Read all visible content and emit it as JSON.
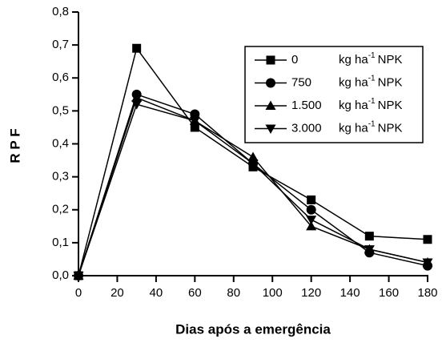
{
  "chart_data": {
    "type": "line",
    "ylabel": "R P F",
    "xlabel": "Dias após a emergência",
    "x": [
      0,
      30,
      60,
      90,
      120,
      150,
      180
    ],
    "series": [
      {
        "name": "0",
        "color": "#000000",
        "marker": "square",
        "values": [
          0,
          0.69,
          0.45,
          0.33,
          0.23,
          0.12,
          0.11
        ]
      },
      {
        "name": "750",
        "color": "#000000",
        "marker": "circle",
        "values": [
          0,
          0.55,
          0.49,
          0.34,
          0.2,
          0.07,
          0.03
        ]
      },
      {
        "name": "1.500",
        "color": "#000000",
        "marker": "triangle-up",
        "values": [
          0,
          0.54,
          0.47,
          0.36,
          0.15,
          0.08,
          0.04
        ]
      },
      {
        "name": "3.000",
        "color": "#000000",
        "marker": "triangle-down",
        "values": [
          0,
          0.52,
          0.47,
          0.34,
          0.17,
          0.08,
          0.04
        ]
      }
    ],
    "legend_unit": {
      "base": "kg ha",
      "sup": "-1",
      "rest": "NPK"
    },
    "legend": "upper right",
    "xlim": [
      0,
      180
    ],
    "xticks": [
      0,
      20,
      40,
      60,
      80,
      100,
      120,
      140,
      160,
      180
    ],
    "ylim": [
      0,
      0.8
    ],
    "yticks": [
      {
        "value": 0,
        "label": "0,0"
      },
      {
        "value": 0.1,
        "label": "0,1"
      },
      {
        "value": 0.2,
        "label": "0,2"
      },
      {
        "value": 0.3,
        "label": "0,3"
      },
      {
        "value": 0.4,
        "label": "0,4"
      },
      {
        "value": 0.5,
        "label": "0,5"
      },
      {
        "value": 0.6,
        "label": "0,6"
      },
      {
        "value": 0.7,
        "label": "0,7"
      },
      {
        "value": 0.8,
        "label": "0,8"
      }
    ]
  }
}
